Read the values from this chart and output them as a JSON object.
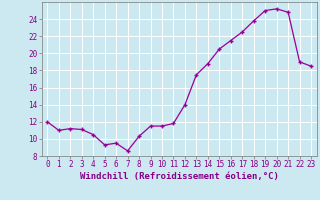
{
  "hours": [
    0,
    1,
    2,
    3,
    4,
    5,
    6,
    7,
    8,
    9,
    10,
    11,
    12,
    13,
    14,
    15,
    16,
    17,
    18,
    19,
    20,
    21,
    22,
    23
  ],
  "values": [
    12.0,
    11.0,
    11.2,
    11.1,
    10.5,
    9.3,
    9.5,
    8.6,
    10.3,
    11.5,
    11.5,
    11.8,
    14.0,
    17.5,
    18.8,
    20.5,
    21.5,
    22.5,
    23.8,
    25.0,
    25.2,
    24.8,
    19.0,
    18.5
  ],
  "xlabel": "Windchill (Refroidissement éolien,°C)",
  "ylim": [
    8,
    26
  ],
  "xlim_min": -0.5,
  "xlim_max": 23.5,
  "yticks": [
    8,
    10,
    12,
    14,
    16,
    18,
    20,
    22,
    24
  ],
  "xticks": [
    0,
    1,
    2,
    3,
    4,
    5,
    6,
    7,
    8,
    9,
    10,
    11,
    12,
    13,
    14,
    15,
    16,
    17,
    18,
    19,
    20,
    21,
    22,
    23
  ],
  "line_color": "#990099",
  "marker": "+",
  "bg_color": "#cce8f0",
  "grid_color": "#ffffff",
  "tick_label_color": "#880088",
  "xlabel_color": "#880088",
  "tick_fontsize": 5.5,
  "xlabel_fontsize": 6.5,
  "linewidth": 0.9,
  "markersize": 3.5,
  "markeredgewidth": 1.0
}
